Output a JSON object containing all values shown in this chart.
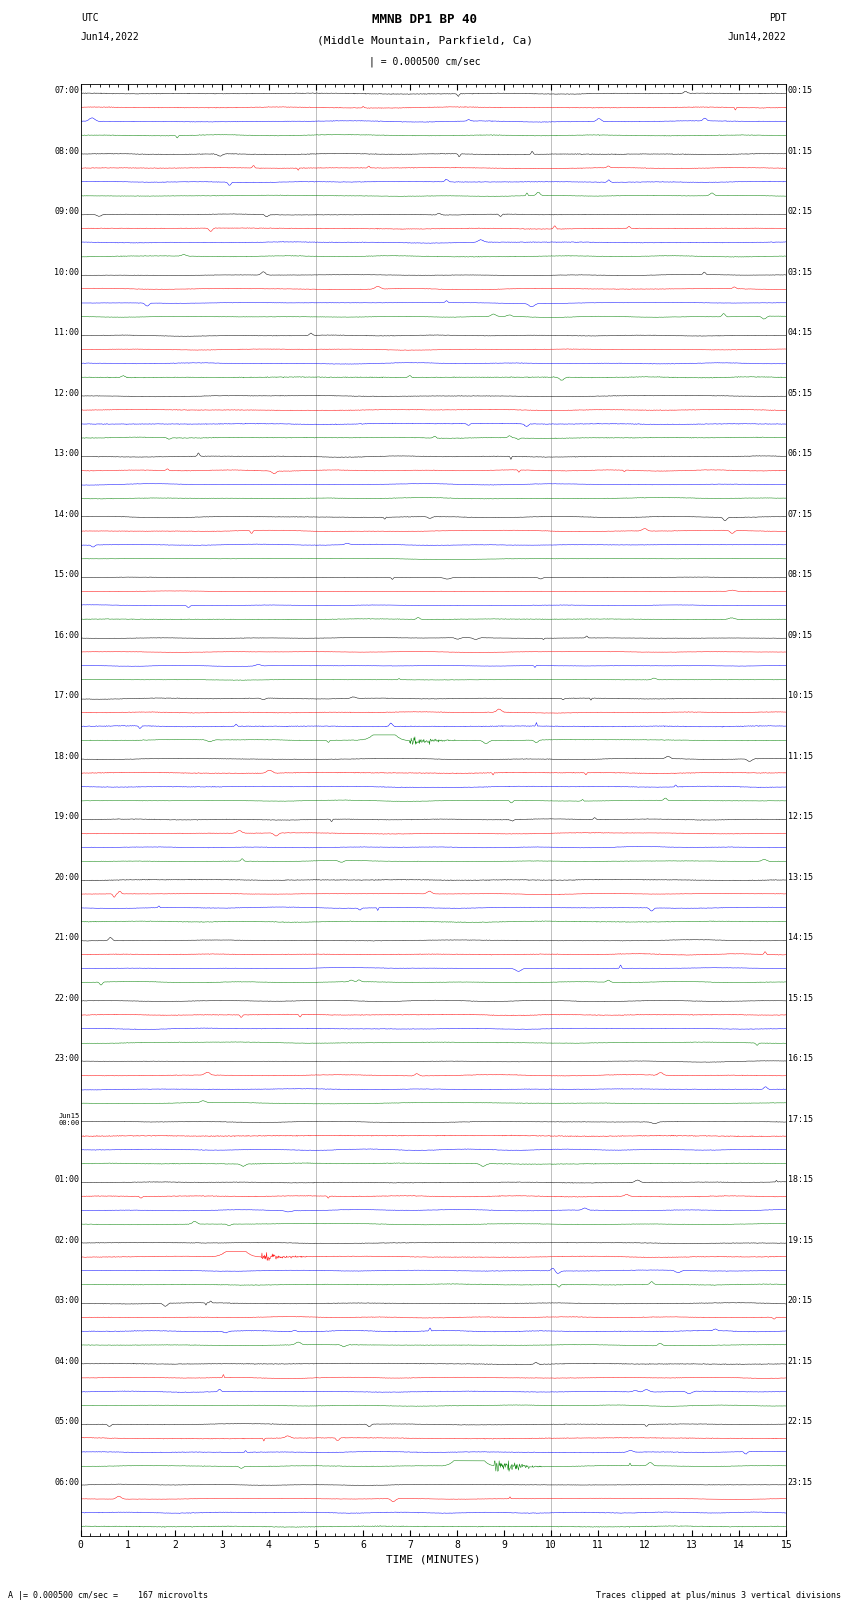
{
  "title_line1": "MMNB DP1 BP 40",
  "title_line2": "(Middle Mountain, Parkfield, Ca)",
  "scale_label": "| = 0.000500 cm/sec",
  "left_label_top": "UTC",
  "left_label_date": "Jun14,2022",
  "right_label_top": "PDT",
  "right_label_date": "Jun14,2022",
  "xlabel": "TIME (MINUTES)",
  "bottom_left_text": "A |= 0.000500 cm/sec =    167 microvolts",
  "bottom_right_text": "Traces clipped at plus/minus 3 vertical divisions",
  "utc_display": [
    "07:00",
    "08:00",
    "09:00",
    "10:00",
    "11:00",
    "12:00",
    "13:00",
    "14:00",
    "15:00",
    "16:00",
    "17:00",
    "18:00",
    "19:00",
    "20:00",
    "21:00",
    "22:00",
    "23:00",
    "Jun15\n00:00",
    "01:00",
    "02:00",
    "03:00",
    "04:00",
    "05:00",
    "06:00"
  ],
  "pdt_display": [
    "00:15",
    "01:15",
    "02:15",
    "03:15",
    "04:15",
    "05:15",
    "06:15",
    "07:15",
    "08:15",
    "09:15",
    "10:15",
    "11:15",
    "12:15",
    "13:15",
    "14:15",
    "15:15",
    "16:15",
    "17:15",
    "18:15",
    "19:15",
    "20:15",
    "21:15",
    "22:15",
    "23:15"
  ],
  "num_hours": 24,
  "traces_per_hour": 4,
  "colors": [
    "black",
    "red",
    "blue",
    "green"
  ],
  "fig_width": 8.5,
  "fig_height": 16.13,
  "bg_color": "white",
  "xmin": 0,
  "xmax": 15,
  "minutes": 15,
  "tick_minutes": [
    0,
    1,
    2,
    3,
    4,
    5,
    6,
    7,
    8,
    9,
    10,
    11,
    12,
    13,
    14,
    15
  ],
  "vline_minutes": [
    5,
    10
  ],
  "noise_level": 0.06,
  "trace_amplitude": 0.38,
  "samples": 1500,
  "spike_rows_green": [
    10,
    80
  ],
  "spike_rows_red": [
    68
  ],
  "spike_rows_black": []
}
